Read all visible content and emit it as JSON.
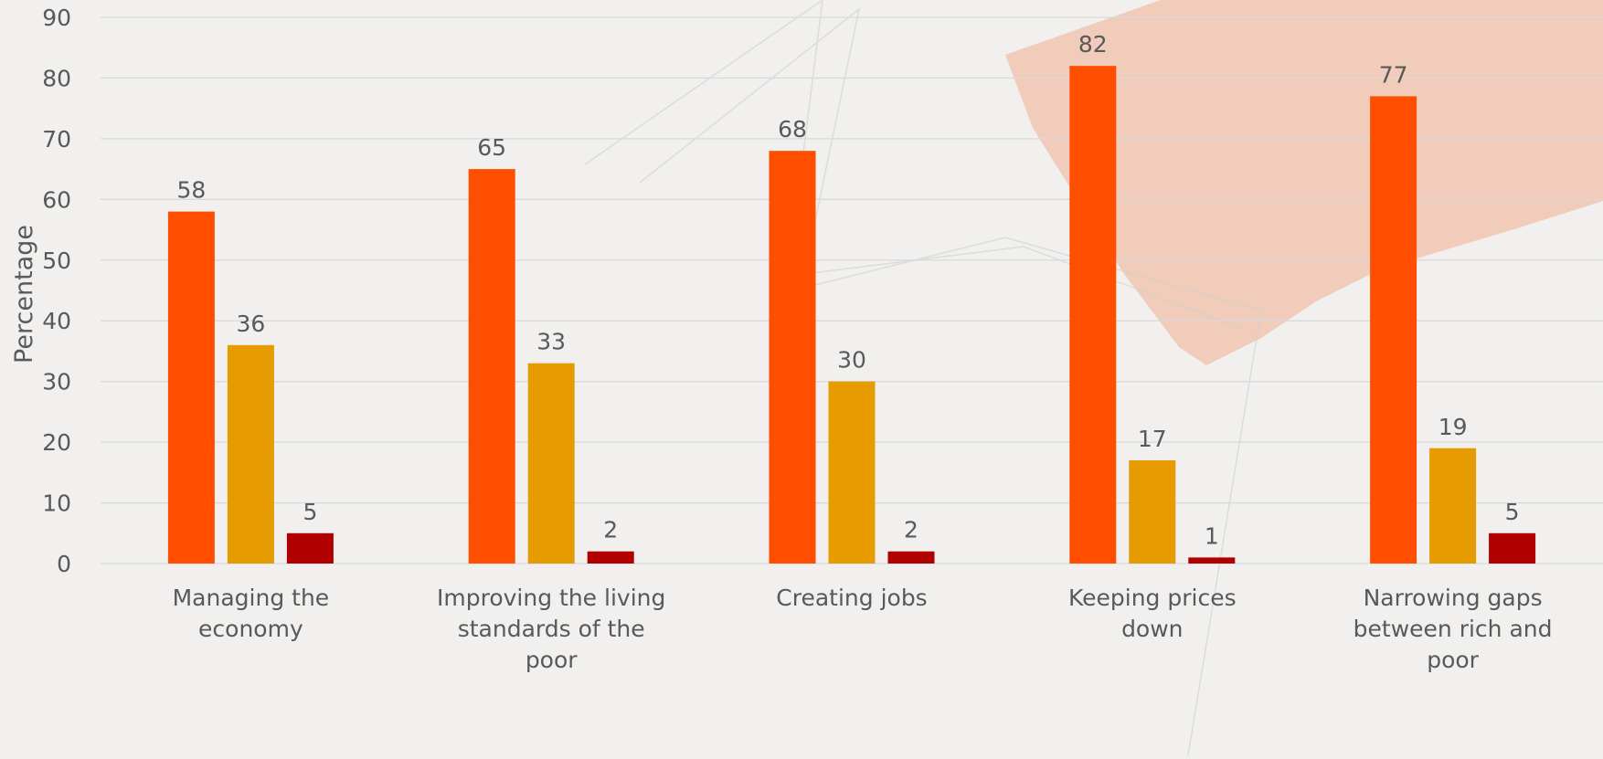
{
  "chart_data": {
    "type": "bar",
    "title": "",
    "xlabel": "",
    "ylabel": "Percentage",
    "ylim": [
      0,
      90
    ],
    "yticks": [
      0,
      10,
      20,
      30,
      40,
      50,
      60,
      70,
      80,
      90
    ],
    "grid": true,
    "legend": "none",
    "categories": [
      [
        "Managing the",
        "economy"
      ],
      [
        "Improving the living",
        "standards of the",
        "poor"
      ],
      [
        "Creating jobs"
      ],
      [
        "Keeping prices",
        "down"
      ],
      [
        "Narrowing gaps",
        "between rich and",
        "poor"
      ]
    ],
    "series": [
      {
        "values": [
          58,
          65,
          68,
          82,
          77
        ],
        "color": "#ff4e00"
      },
      {
        "values": [
          36,
          33,
          30,
          17,
          19
        ],
        "color": "#e69b00"
      },
      {
        "values": [
          5,
          2,
          2,
          1,
          5
        ],
        "color": "#b00000"
      }
    ]
  },
  "colors": {
    "background": "#f1f0ee",
    "gridline": "#d9d9d9",
    "text": "#595959",
    "decor": "#f2a07a"
  }
}
